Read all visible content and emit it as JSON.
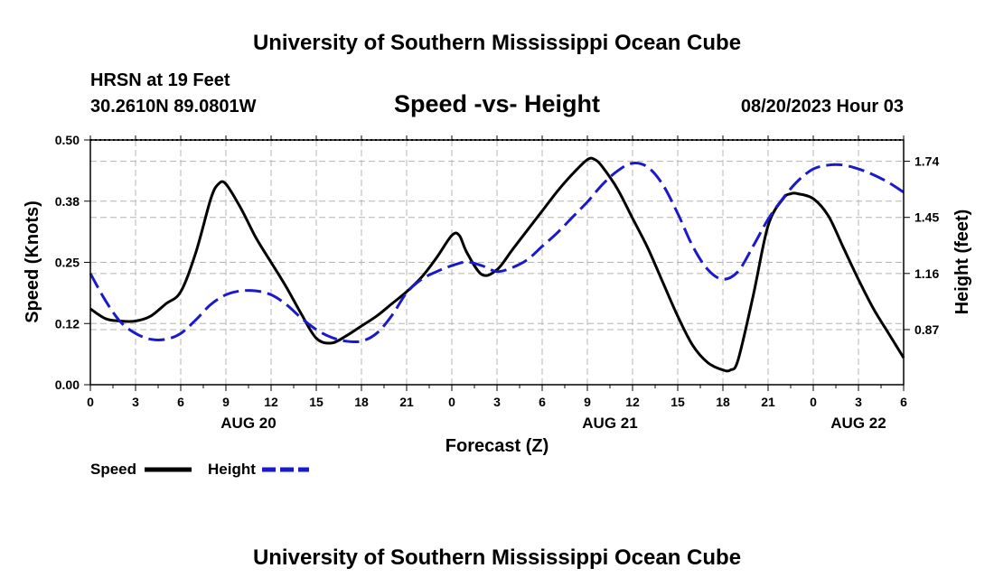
{
  "header": {
    "title": "University of Southern Mississippi Ocean Cube",
    "station": "HRSN at 19 Feet",
    "location": "30.2610N  89.0801W",
    "subtitle": "Speed -vs- Height",
    "datetime": "08/20/2023 Hour 03"
  },
  "footer": {
    "title": "University of Southern Mississippi Ocean Cube"
  },
  "chart_data": {
    "type": "line",
    "title": "Speed -vs- Height",
    "xlabel": "Forecast (Z)",
    "ylabel_left": "Speed (Knots)",
    "ylabel_right": "Height (feet)",
    "xlim": [
      0,
      54
    ],
    "ylim_left": [
      0,
      0.5
    ],
    "ylim_right": [
      0.585,
      1.85
    ],
    "grid": true,
    "x_ticks": [
      0,
      3,
      6,
      9,
      12,
      15,
      18,
      21,
      24,
      27,
      30,
      33,
      36,
      39,
      42,
      45,
      48,
      51,
      54
    ],
    "x_tick_labels": [
      "0",
      "3",
      "6",
      "9",
      "12",
      "15",
      "18",
      "21",
      "0",
      "3",
      "6",
      "9",
      "12",
      "15",
      "18",
      "21",
      "0",
      "3",
      "6"
    ],
    "left_ticks": [
      0,
      0.125,
      0.25,
      0.375,
      0.5
    ],
    "left_tick_labels": [
      "0.00",
      "0.12",
      "0.25",
      "0.38",
      "0.50"
    ],
    "right_ticks": [
      0.87,
      1.16,
      1.45,
      1.74
    ],
    "right_tick_labels": [
      "0.87",
      "1.16",
      "1.45",
      "1.74"
    ],
    "date_labels": [
      {
        "x": 10.5,
        "label": "AUG 20"
      },
      {
        "x": 34.5,
        "label": "AUG 21"
      },
      {
        "x": 51,
        "label": "AUG 22"
      }
    ],
    "legend": [
      {
        "name": "Speed",
        "color": "#000000",
        "style": "solid"
      },
      {
        "name": "Height",
        "color": "#1a1acc",
        "style": "dashed"
      }
    ],
    "series": [
      {
        "name": "Speed",
        "axis": "left",
        "color": "#000000",
        "x": [
          0,
          1,
          2,
          3,
          4,
          5,
          6,
          7,
          8,
          8.5,
          9,
          10,
          11,
          12,
          13,
          14,
          15,
          16,
          17,
          18,
          19,
          20,
          21,
          22,
          23,
          24,
          24.5,
          25,
          26,
          27,
          28,
          29,
          30,
          31,
          32,
          33,
          33.5,
          34,
          35,
          36,
          37,
          38,
          39,
          40,
          41,
          42,
          42.5,
          43,
          44,
          45,
          46,
          46.5,
          47,
          48,
          49,
          50,
          51,
          52,
          53,
          54
        ],
        "y": [
          0.155,
          0.135,
          0.13,
          0.13,
          0.14,
          0.165,
          0.19,
          0.27,
          0.38,
          0.41,
          0.41,
          0.36,
          0.3,
          0.25,
          0.2,
          0.145,
          0.095,
          0.085,
          0.1,
          0.12,
          0.14,
          0.165,
          0.19,
          0.22,
          0.26,
          0.305,
          0.305,
          0.27,
          0.225,
          0.235,
          0.275,
          0.315,
          0.355,
          0.395,
          0.43,
          0.46,
          0.46,
          0.445,
          0.4,
          0.34,
          0.28,
          0.21,
          0.14,
          0.08,
          0.045,
          0.03,
          0.03,
          0.05,
          0.18,
          0.325,
          0.38,
          0.39,
          0.39,
          0.38,
          0.345,
          0.28,
          0.215,
          0.155,
          0.105,
          0.055
        ]
      },
      {
        "name": "Height",
        "axis": "right",
        "color": "#1a1acc",
        "x": [
          0,
          1,
          2,
          3,
          4,
          5,
          6,
          7,
          8,
          9,
          10,
          11,
          12,
          13,
          14,
          15,
          16,
          17,
          18,
          19,
          20,
          21,
          22,
          23,
          24,
          25,
          26,
          27,
          28,
          29,
          30,
          31,
          32,
          33,
          34,
          35,
          36,
          37,
          38,
          39,
          40,
          41,
          42,
          43,
          44,
          45,
          46,
          47,
          48,
          49,
          50,
          51,
          52,
          53,
          54
        ],
        "y": [
          1.16,
          1.02,
          0.91,
          0.85,
          0.82,
          0.82,
          0.85,
          0.92,
          1.0,
          1.05,
          1.07,
          1.07,
          1.05,
          1.0,
          0.93,
          0.87,
          0.83,
          0.81,
          0.81,
          0.85,
          0.94,
          1.06,
          1.13,
          1.17,
          1.2,
          1.22,
          1.2,
          1.17,
          1.19,
          1.23,
          1.3,
          1.37,
          1.45,
          1.53,
          1.62,
          1.69,
          1.73,
          1.71,
          1.62,
          1.47,
          1.3,
          1.18,
          1.13,
          1.17,
          1.3,
          1.44,
          1.55,
          1.64,
          1.7,
          1.72,
          1.72,
          1.7,
          1.67,
          1.63,
          1.58
        ]
      }
    ]
  }
}
